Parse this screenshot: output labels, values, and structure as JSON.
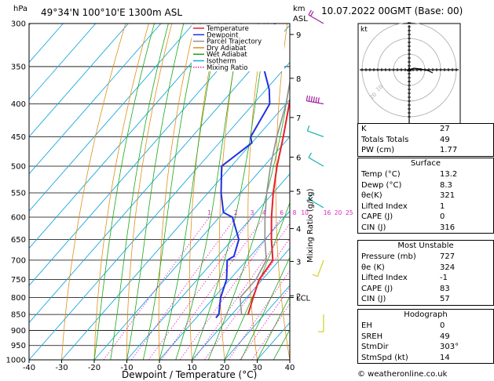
{
  "header": {
    "hpa_label": "hPa",
    "location": "49°34'N  100°10'E  1300m  ASL",
    "km_label": "km",
    "asl_label": "ASL",
    "datetime": "10.07.2022  00GMT  (Base: 00)"
  },
  "legend": [
    {
      "label": "Temperature",
      "color": "#e8202a"
    },
    {
      "label": "Dewpoint",
      "color": "#2030e0"
    },
    {
      "label": "Parcel Trajectory",
      "color": "#909090"
    },
    {
      "label": "Dry Adiabat",
      "color": "#e0901a"
    },
    {
      "label": "Wet Adiabat",
      "color": "#18a818"
    },
    {
      "label": "Isotherm",
      "color": "#18a8e0"
    },
    {
      "label": "Mixing Ratio",
      "color": "#e020c0"
    }
  ],
  "chart_data": {
    "type": "line",
    "xlabel": "Dewpoint / Temperature (°C)",
    "ylabel_right": "Mixing Ratio (g/kg)",
    "x_ticks": [
      -40,
      -30,
      -20,
      -10,
      0,
      10,
      20,
      30,
      40
    ],
    "pressure_levels": [
      300,
      350,
      400,
      450,
      500,
      550,
      600,
      650,
      700,
      750,
      800,
      850,
      900,
      950,
      1000
    ],
    "xlim": [
      -40,
      40
    ],
    "ylim_hpa": [
      1000,
      300
    ],
    "km_ticks": [
      {
        "km": "9",
        "p": 312
      },
      {
        "km": "8",
        "p": 365
      },
      {
        "km": "7",
        "p": 420
      },
      {
        "km": "6",
        "p": 484
      },
      {
        "km": "5",
        "p": 547
      },
      {
        "km": "4",
        "p": 625
      },
      {
        "km": "3",
        "p": 703
      },
      {
        "km": "2",
        "p": 795
      },
      {
        "km": "LCL",
        "p": 800
      }
    ],
    "mixing_ratio_labels": [
      "1",
      "2",
      "3",
      "4",
      "6",
      "8",
      "10",
      "16",
      "20",
      "25"
    ],
    "mixing_ratio_values": [
      1,
      2,
      3,
      4,
      6,
      8,
      10,
      16,
      20,
      25
    ],
    "series": [
      {
        "name": "Temperature",
        "color": "#e8202a",
        "points": [
          [
            300,
            -45
          ],
          [
            350,
            -37
          ],
          [
            400,
            -29
          ],
          [
            450,
            -22
          ],
          [
            500,
            -16
          ],
          [
            550,
            -10
          ],
          [
            600,
            -4
          ],
          [
            650,
            2
          ],
          [
            700,
            8
          ],
          [
            750,
            9
          ],
          [
            800,
            12
          ],
          [
            850,
            15
          ]
        ]
      },
      {
        "name": "Dewpoint",
        "color": "#2030e0",
        "points": [
          [
            300,
            -55
          ],
          [
            340,
            -49
          ],
          [
            350,
            -47
          ],
          [
            380,
            -39
          ],
          [
            400,
            -35
          ],
          [
            450,
            -32
          ],
          [
            460,
            -30
          ],
          [
            500,
            -33
          ],
          [
            550,
            -26
          ],
          [
            590,
            -20
          ],
          [
            600,
            -16
          ],
          [
            650,
            -8
          ],
          [
            690,
            -5
          ],
          [
            700,
            -6
          ],
          [
            750,
            -1
          ],
          [
            800,
            2
          ],
          [
            850,
            6
          ],
          [
            860,
            6
          ]
        ]
      },
      {
        "name": "Parcel Trajectory",
        "color": "#909090",
        "points": [
          [
            300,
            -47
          ],
          [
            350,
            -38
          ],
          [
            400,
            -30
          ],
          [
            450,
            -24
          ],
          [
            500,
            -18
          ],
          [
            550,
            -12
          ],
          [
            600,
            -6
          ],
          [
            650,
            0
          ],
          [
            700,
            6
          ],
          [
            750,
            8
          ],
          [
            800,
            8
          ],
          [
            850,
            13
          ]
        ]
      }
    ]
  },
  "hodograph": {
    "label": "kt",
    "ring_labels": [
      "10",
      "20"
    ]
  },
  "wind_barbs": [
    {
      "p": 300,
      "dir": 300,
      "spd": 15
    },
    {
      "p": 400,
      "dir": 280,
      "spd": 60
    },
    {
      "p": 450,
      "dir": 290,
      "spd": 10
    },
    {
      "p": 500,
      "dir": 300,
      "spd": 10
    },
    {
      "p": 580,
      "dir": 300,
      "spd": 10
    },
    {
      "p": 700,
      "dir": 200,
      "spd": 5
    },
    {
      "p": 850,
      "dir": 180,
      "spd": 5
    }
  ],
  "indices": {
    "k_label": "K",
    "k": "27",
    "tt_label": "Totals Totals",
    "tt": "49",
    "pw_label": "PW (cm)",
    "pw": "1.77"
  },
  "surface": {
    "title": "Surface",
    "temp_label": "Temp (°C)",
    "temp": "13.2",
    "dewp_label": "Dewp (°C)",
    "dewp": "8.3",
    "theta_label": "θe(K)",
    "theta": "321",
    "li_label": "Lifted Index",
    "li": "1",
    "cape_label": "CAPE (J)",
    "cape": "0",
    "cin_label": "CIN (J)",
    "cin": "316"
  },
  "most_unstable": {
    "title": "Most Unstable",
    "pres_label": "Pressure (mb)",
    "pres": "727",
    "theta_label": "θe (K)",
    "theta": "324",
    "li_label": "Lifted Index",
    "li": "-1",
    "cape_label": "CAPE (J)",
    "cape": "83",
    "cin_label": "CIN (J)",
    "cin": "57"
  },
  "hodo_params": {
    "title": "Hodograph",
    "eh_label": "EH",
    "eh": "0",
    "sreh_label": "SREH",
    "sreh": "49",
    "stmdir_label": "StmDir",
    "stmdir": "303°",
    "stmspd_label": "StmSpd (kt)",
    "stmspd": "14"
  },
  "footer": "© weatheronline.co.uk"
}
